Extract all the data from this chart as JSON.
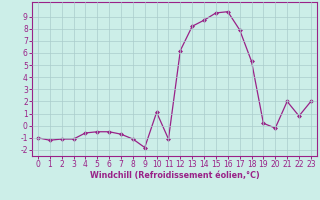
{
  "x": [
    0,
    1,
    2,
    3,
    4,
    5,
    6,
    7,
    8,
    9,
    10,
    11,
    12,
    13,
    14,
    15,
    16,
    17,
    18,
    19,
    20,
    21,
    22,
    23
  ],
  "y": [
    -1,
    -1.2,
    -1.1,
    -1.1,
    -0.6,
    -0.5,
    -0.5,
    -0.7,
    -1.1,
    -1.8,
    1.1,
    -1.1,
    6.2,
    8.2,
    8.7,
    9.3,
    9.4,
    7.9,
    5.3,
    0.2,
    -0.2,
    2.0,
    0.8,
    2.0
  ],
  "line_color": "#992288",
  "marker": "D",
  "markersize": 2.0,
  "linewidth": 0.9,
  "background_color": "#cceee8",
  "grid_color": "#aacccc",
  "xlabel": "Windchill (Refroidissement éolien,°C)",
  "xlabel_color": "#992288",
  "tick_color": "#992288",
  "ylim": [
    -2.5,
    10.2
  ],
  "xlim": [
    -0.5,
    23.5
  ],
  "yticks": [
    -2,
    -1,
    0,
    1,
    2,
    3,
    4,
    5,
    6,
    7,
    8,
    9
  ],
  "xticks": [
    0,
    1,
    2,
    3,
    4,
    5,
    6,
    7,
    8,
    9,
    10,
    11,
    12,
    13,
    14,
    15,
    16,
    17,
    18,
    19,
    20,
    21,
    22,
    23
  ],
  "tick_fontsize": 5.5,
  "xlabel_fontsize": 5.8,
  "xlabel_fontweight": "bold"
}
